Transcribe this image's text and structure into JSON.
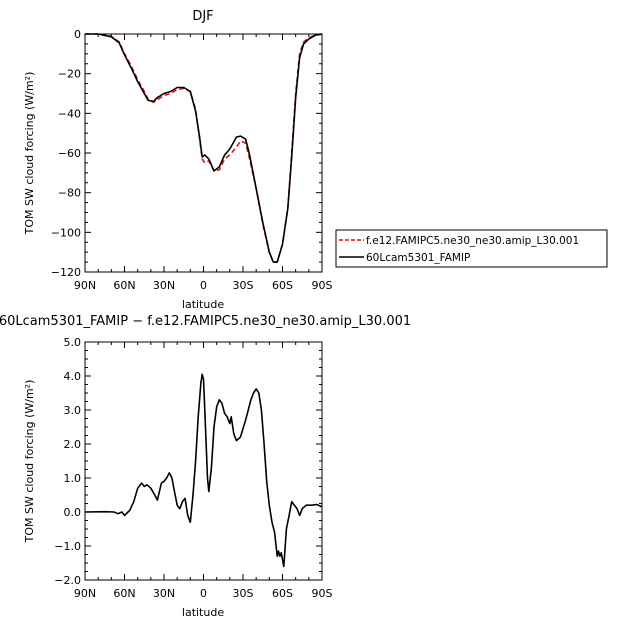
{
  "chart_data": [
    {
      "type": "line",
      "title": "DJF",
      "xlabel": "latitude",
      "ylabel": "TOM SW cloud forcing (W/m²)",
      "xlim": [
        90,
        -90
      ],
      "ylim": [
        -120,
        0
      ],
      "x_ticks": [
        90,
        60,
        30,
        0,
        -30,
        -60,
        -90
      ],
      "x_tick_labels": [
        "90N",
        "60N",
        "30N",
        "0",
        "30S",
        "60S",
        "90S"
      ],
      "y_ticks": [
        0,
        -20,
        -40,
        -60,
        -80,
        -100,
        -120
      ],
      "y_tick_labels": [
        "0",
        "−20",
        "−40",
        "−60",
        "−80",
        "−100",
        "−120"
      ],
      "grid": false,
      "legend_position": "right",
      "series": [
        {
          "name": "f.e12.FAMIPC5.ne30_ne30.amip_L30.001",
          "color": "#dd1111",
          "dash": "dashed",
          "points": [
            [
              90,
              0
            ],
            [
              80,
              0
            ],
            [
              70,
              -1.2
            ],
            [
              64,
              -4
            ],
            [
              60,
              -10
            ],
            [
              55,
              -16
            ],
            [
              50,
              -23
            ],
            [
              45,
              -29
            ],
            [
              42,
              -33
            ],
            [
              38,
              -34.5
            ],
            [
              35,
              -33
            ],
            [
              30,
              -31
            ],
            [
              25,
              -30
            ],
            [
              20,
              -28
            ],
            [
              15,
              -27.5
            ],
            [
              10,
              -29
            ],
            [
              6,
              -38
            ],
            [
              3,
              -53
            ],
            [
              1,
              -63
            ],
            [
              -1,
              -65
            ],
            [
              -4,
              -64
            ],
            [
              -8,
              -69
            ],
            [
              -12,
              -68.5
            ],
            [
              -16,
              -63
            ],
            [
              -20,
              -61
            ],
            [
              -25,
              -57
            ],
            [
              -28,
              -54
            ],
            [
              -32,
              -55
            ],
            [
              -35,
              -63
            ],
            [
              -40,
              -78
            ],
            [
              -45,
              -96
            ],
            [
              -50,
              -110
            ],
            [
              -53,
              -115
            ],
            [
              -56,
              -115
            ],
            [
              -60,
              -106
            ],
            [
              -64,
              -88
            ],
            [
              -67,
              -60
            ],
            [
              -70,
              -30
            ],
            [
              -73,
              -10
            ],
            [
              -76,
              -4
            ],
            [
              -80,
              -2
            ],
            [
              -85,
              -0.5
            ],
            [
              -90,
              0
            ]
          ]
        },
        {
          "name": "60Lcam5301_FAMIP",
          "color": "#000000",
          "dash": "solid",
          "points": [
            [
              90,
              0
            ],
            [
              80,
              0
            ],
            [
              70,
              -1.4
            ],
            [
              64,
              -4.5
            ],
            [
              60,
              -10.5
            ],
            [
              55,
              -17
            ],
            [
              50,
              -24
            ],
            [
              45,
              -30
            ],
            [
              42,
              -33.5
            ],
            [
              38,
              -34
            ],
            [
              35,
              -32
            ],
            [
              30,
              -30
            ],
            [
              25,
              -29
            ],
            [
              20,
              -27
            ],
            [
              15,
              -27
            ],
            [
              10,
              -29
            ],
            [
              6,
              -39
            ],
            [
              3,
              -52
            ],
            [
              1,
              -62
            ],
            [
              -1,
              -61
            ],
            [
              -4,
              -63
            ],
            [
              -8,
              -69
            ],
            [
              -12,
              -67
            ],
            [
              -16,
              -61
            ],
            [
              -20,
              -58
            ],
            [
              -25,
              -52
            ],
            [
              -28,
              -51.5
            ],
            [
              -32,
              -53
            ],
            [
              -35,
              -61
            ],
            [
              -40,
              -78
            ],
            [
              -45,
              -95
            ],
            [
              -50,
              -110
            ],
            [
              -53,
              -115
            ],
            [
              -56,
              -115
            ],
            [
              -60,
              -106
            ],
            [
              -64,
              -88
            ],
            [
              -67,
              -62
            ],
            [
              -70,
              -32
            ],
            [
              -73,
              -12
            ],
            [
              -76,
              -5
            ],
            [
              -80,
              -2.5
            ],
            [
              -85,
              -0.6
            ],
            [
              -90,
              0
            ]
          ]
        }
      ]
    },
    {
      "type": "line",
      "title": "60Lcam5301_FAMIP − f.e12.FAMIPC5.ne30_ne30.amip_L30.001",
      "xlabel": "latitude",
      "ylabel": "TOM SW cloud forcing (W/m²)",
      "xlim": [
        90,
        -90
      ],
      "ylim": [
        -2.0,
        5.0
      ],
      "x_ticks": [
        90,
        60,
        30,
        0,
        -30,
        -60,
        -90
      ],
      "x_tick_labels": [
        "90N",
        "60N",
        "30N",
        "0",
        "30S",
        "60S",
        "90S"
      ],
      "y_ticks": [
        5,
        4,
        3,
        2,
        1,
        0,
        -1,
        -2
      ],
      "y_tick_labels": [
        "5.0",
        "4.0",
        "3.0",
        "2.0",
        "1.0",
        "0.0",
        "−1.0",
        "−2.0"
      ],
      "grid": false,
      "series": [
        {
          "color": "#000000",
          "dash": "solid",
          "points": [
            [
              90,
              0
            ],
            [
              75,
              0.01
            ],
            [
              68,
              0
            ],
            [
              65,
              -0.05
            ],
            [
              62,
              0
            ],
            [
              60,
              -0.1
            ],
            [
              56,
              0.05
            ],
            [
              53,
              0.3
            ],
            [
              50,
              0.7
            ],
            [
              47,
              0.85
            ],
            [
              45,
              0.75
            ],
            [
              43,
              0.8
            ],
            [
              40,
              0.7
            ],
            [
              37,
              0.5
            ],
            [
              35,
              0.35
            ],
            [
              32,
              0.85
            ],
            [
              30,
              0.9
            ],
            [
              28,
              1.0
            ],
            [
              26,
              1.15
            ],
            [
              24,
              1.0
            ],
            [
              22,
              0.6
            ],
            [
              20,
              0.2
            ],
            [
              18,
              0.1
            ],
            [
              16,
              0.3
            ],
            [
              14,
              0.4
            ],
            [
              12,
              -0.1
            ],
            [
              10,
              -0.3
            ],
            [
              8,
              0.5
            ],
            [
              6,
              1.5
            ],
            [
              4,
              2.8
            ],
            [
              2,
              3.8
            ],
            [
              1,
              4.05
            ],
            [
              0,
              3.9
            ],
            [
              -1,
              3.0
            ],
            [
              -3,
              1.0
            ],
            [
              -4,
              0.6
            ],
            [
              -6,
              1.3
            ],
            [
              -8,
              2.5
            ],
            [
              -10,
              3.1
            ],
            [
              -12,
              3.3
            ],
            [
              -14,
              3.2
            ],
            [
              -16,
              2.9
            ],
            [
              -18,
              2.8
            ],
            [
              -20,
              2.6
            ],
            [
              -21,
              2.8
            ],
            [
              -23,
              2.3
            ],
            [
              -25,
              2.1
            ],
            [
              -28,
              2.2
            ],
            [
              -32,
              2.7
            ],
            [
              -36,
              3.3
            ],
            [
              -38,
              3.5
            ],
            [
              -40,
              3.62
            ],
            [
              -42,
              3.5
            ],
            [
              -44,
              3.0
            ],
            [
              -46,
              2.0
            ],
            [
              -48,
              0.9
            ],
            [
              -50,
              0.2
            ],
            [
              -52,
              -0.3
            ],
            [
              -54,
              -0.6
            ],
            [
              -56,
              -1.3
            ],
            [
              -57,
              -1.15
            ],
            [
              -58,
              -1.3
            ],
            [
              -59,
              -1.2
            ],
            [
              -61,
              -1.6
            ],
            [
              -63,
              -0.5
            ],
            [
              -65,
              -0.1
            ],
            [
              -67,
              0.3
            ],
            [
              -69,
              0.2
            ],
            [
              -71,
              0.1
            ],
            [
              -73,
              -0.1
            ],
            [
              -75,
              0.1
            ],
            [
              -78,
              0.2
            ],
            [
              -82,
              0.2
            ],
            [
              -86,
              0.22
            ],
            [
              -90,
              0.15
            ]
          ]
        }
      ]
    }
  ]
}
